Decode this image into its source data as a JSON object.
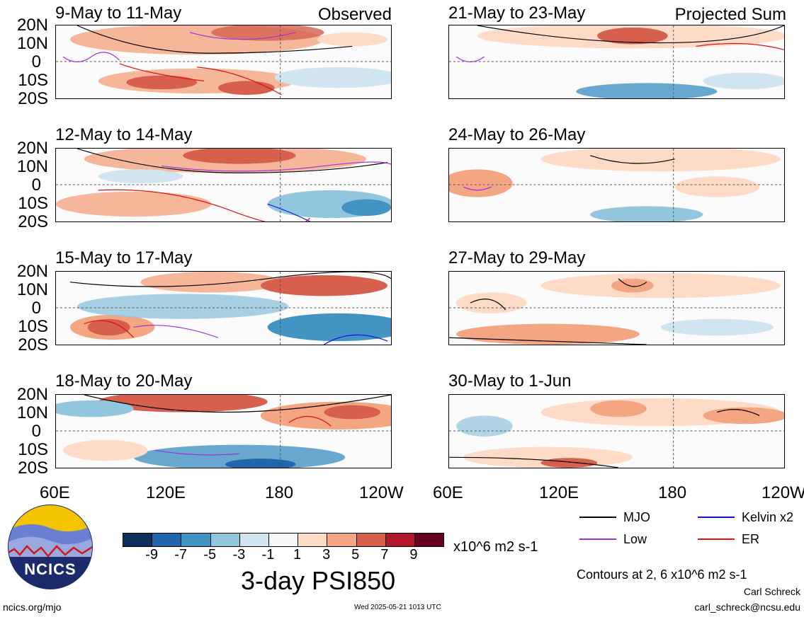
{
  "labels": {
    "observed": "Observed",
    "projected": "Projected Sum"
  },
  "panels_left": [
    {
      "title": "9-May to 11-May"
    },
    {
      "title": "12-May to 14-May"
    },
    {
      "title": "15-May to 17-May"
    },
    {
      "title": "18-May to 20-May"
    }
  ],
  "panels_right": [
    {
      "title": "21-May to 23-May"
    },
    {
      "title": "24-May to 26-May"
    },
    {
      "title": "27-May to 29-May"
    },
    {
      "title": "30-May to 1-Jun"
    }
  ],
  "lat_labels": [
    "20N",
    "10N",
    "0",
    "10S",
    "20S"
  ],
  "lon_labels_left": [
    "60E",
    "120E",
    "180",
    "120W"
  ],
  "lon_labels_right": [
    "60E",
    "120E",
    "180",
    "120W"
  ],
  "colorbar": {
    "colors": [
      "#0d2f5c",
      "#2166ac",
      "#4393c3",
      "#92c5de",
      "#d1e5f0",
      "#f7f7f7",
      "#fddbc7",
      "#f4a582",
      "#d6604d",
      "#b2182b",
      "#67001f"
    ],
    "ticks": [
      "-9",
      "-7",
      "-5",
      "-3",
      "-1",
      "1",
      "3",
      "5",
      "7",
      "9"
    ],
    "units": "x10^6 m2 s-1",
    "title": "3-day PSI850"
  },
  "legend": [
    {
      "name": "MJO",
      "color": "#000000"
    },
    {
      "name": "Kelvin x2",
      "color": "#1010dd"
    },
    {
      "name": "Low",
      "color": "#a030e0"
    },
    {
      "name": "ER",
      "color": "#e01010"
    }
  ],
  "contour_note": "Contours at 2, 6 x10^6 m2 s-1",
  "author": "Carl Schreck",
  "email": "carl_schreck@ncsu.edu",
  "site": "ncics.org/mjo",
  "timestamp": "Wed 2025-05-21 1013 UTC",
  "logo_text": "NCICS"
}
